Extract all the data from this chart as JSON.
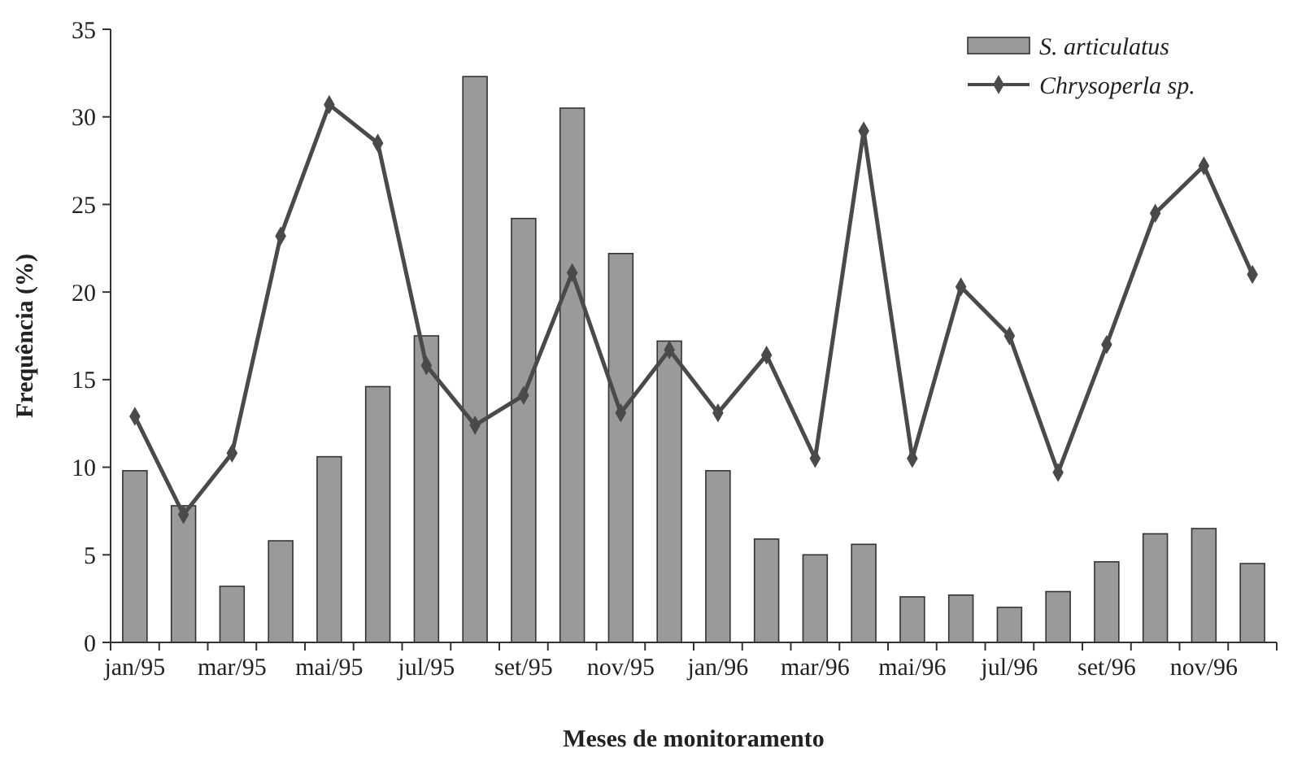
{
  "chart_data": {
    "type": "bar",
    "xlabel": "Meses de monitoramento",
    "ylabel": "Frequência (%)",
    "categories": [
      "jan/95",
      null,
      "mar/95",
      null,
      "mai/95",
      null,
      "jul/95",
      null,
      "set/95",
      null,
      "nov/95",
      null,
      "jan/96",
      null,
      "mar/96",
      null,
      "mai/96",
      null,
      "jul/96",
      null,
      "set/96",
      null,
      "nov/96",
      null
    ],
    "series": [
      {
        "name": "S. articulatus",
        "color": "#9a9a9a",
        "values": [
          9.8,
          7.8,
          3.2,
          5.8,
          10.6,
          14.6,
          17.5,
          32.3,
          24.2,
          30.5,
          22.2,
          17.2,
          9.8,
          5.9,
          5.0,
          5.6,
          2.6,
          2.7,
          2.0,
          2.9,
          4.6,
          6.2,
          6.5,
          4.5
        ]
      },
      {
        "name": "Chrysoperla sp.",
        "type": "line",
        "color": "#4a4a4a",
        "marker": "diamond",
        "values": [
          12.9,
          7.3,
          10.8,
          23.2,
          30.7,
          28.5,
          15.8,
          12.4,
          14.1,
          21.1,
          13.1,
          16.7,
          13.1,
          16.4,
          10.5,
          29.2,
          10.5,
          20.3,
          17.5,
          9.7,
          17.0,
          24.5,
          27.2,
          21.0
        ]
      }
    ],
    "ylim": [
      0,
      35
    ],
    "yticks": [
      0,
      5,
      10,
      15,
      20,
      25,
      30,
      35
    ],
    "grid": false,
    "legend": "top right"
  }
}
